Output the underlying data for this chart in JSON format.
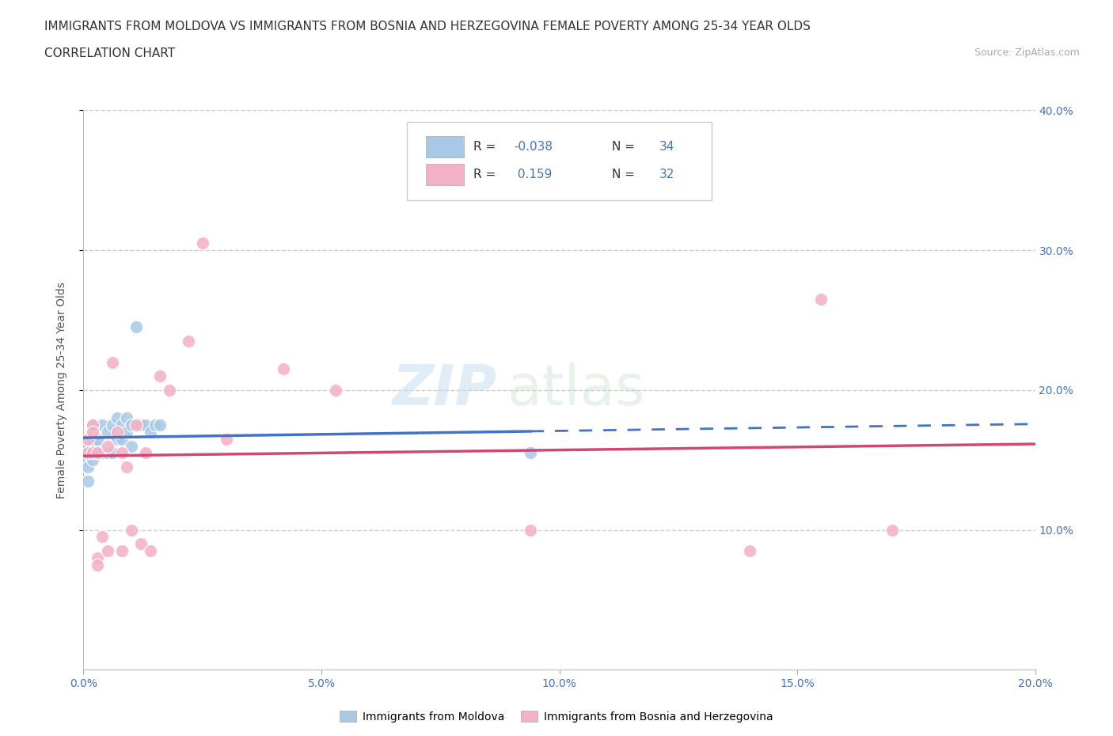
{
  "title_line1": "IMMIGRANTS FROM MOLDOVA VS IMMIGRANTS FROM BOSNIA AND HERZEGOVINA FEMALE POVERTY AMONG 25-34 YEAR OLDS",
  "title_line2": "CORRELATION CHART",
  "source_text": "Source: ZipAtlas.com",
  "ylabel": "Female Poverty Among 25-34 Year Olds",
  "legend_label1": "Immigrants from Moldova",
  "legend_label2": "Immigrants from Bosnia and Herzegovina",
  "r1_text": "-0.038",
  "n1_text": "34",
  "r2_text": "0.159",
  "n2_text": "32",
  "color_blue": "#a8c8e8",
  "color_pink": "#f4b0c4",
  "color_blue_line": "#4472c4",
  "color_pink_line": "#d04878",
  "xlim": [
    0.0,
    0.2
  ],
  "ylim": [
    0.0,
    0.4
  ],
  "xticks": [
    0.0,
    0.05,
    0.1,
    0.15,
    0.2
  ],
  "yticks_right": [
    0.1,
    0.2,
    0.3,
    0.4
  ],
  "grid_color": "#cccccc",
  "blue_scatter_x": [
    0.001,
    0.001,
    0.001,
    0.001,
    0.001,
    0.002,
    0.002,
    0.002,
    0.002,
    0.002,
    0.003,
    0.003,
    0.003,
    0.004,
    0.004,
    0.005,
    0.005,
    0.006,
    0.006,
    0.007,
    0.007,
    0.008,
    0.008,
    0.009,
    0.009,
    0.01,
    0.01,
    0.011,
    0.012,
    0.013,
    0.014,
    0.015,
    0.016,
    0.094
  ],
  "blue_scatter_y": [
    0.15,
    0.155,
    0.16,
    0.145,
    0.135,
    0.155,
    0.165,
    0.175,
    0.16,
    0.15,
    0.16,
    0.165,
    0.155,
    0.155,
    0.175,
    0.155,
    0.17,
    0.155,
    0.175,
    0.165,
    0.18,
    0.165,
    0.175,
    0.17,
    0.18,
    0.16,
    0.175,
    0.245,
    0.175,
    0.175,
    0.17,
    0.175,
    0.175,
    0.155
  ],
  "pink_scatter_x": [
    0.001,
    0.001,
    0.002,
    0.002,
    0.002,
    0.003,
    0.003,
    0.003,
    0.004,
    0.005,
    0.005,
    0.006,
    0.007,
    0.008,
    0.008,
    0.009,
    0.01,
    0.011,
    0.012,
    0.013,
    0.014,
    0.016,
    0.018,
    0.022,
    0.025,
    0.03,
    0.042,
    0.053,
    0.094,
    0.14,
    0.155,
    0.17
  ],
  "pink_scatter_y": [
    0.155,
    0.165,
    0.175,
    0.155,
    0.17,
    0.155,
    0.08,
    0.075,
    0.095,
    0.16,
    0.085,
    0.22,
    0.17,
    0.085,
    0.155,
    0.145,
    0.1,
    0.175,
    0.09,
    0.155,
    0.085,
    0.21,
    0.2,
    0.235,
    0.305,
    0.165,
    0.215,
    0.2,
    0.1,
    0.085,
    0.265,
    0.1
  ],
  "tick_color": "#4472c4",
  "tick_fontsize": 10,
  "title_fontsize": 11,
  "axis_label_fontsize": 10
}
